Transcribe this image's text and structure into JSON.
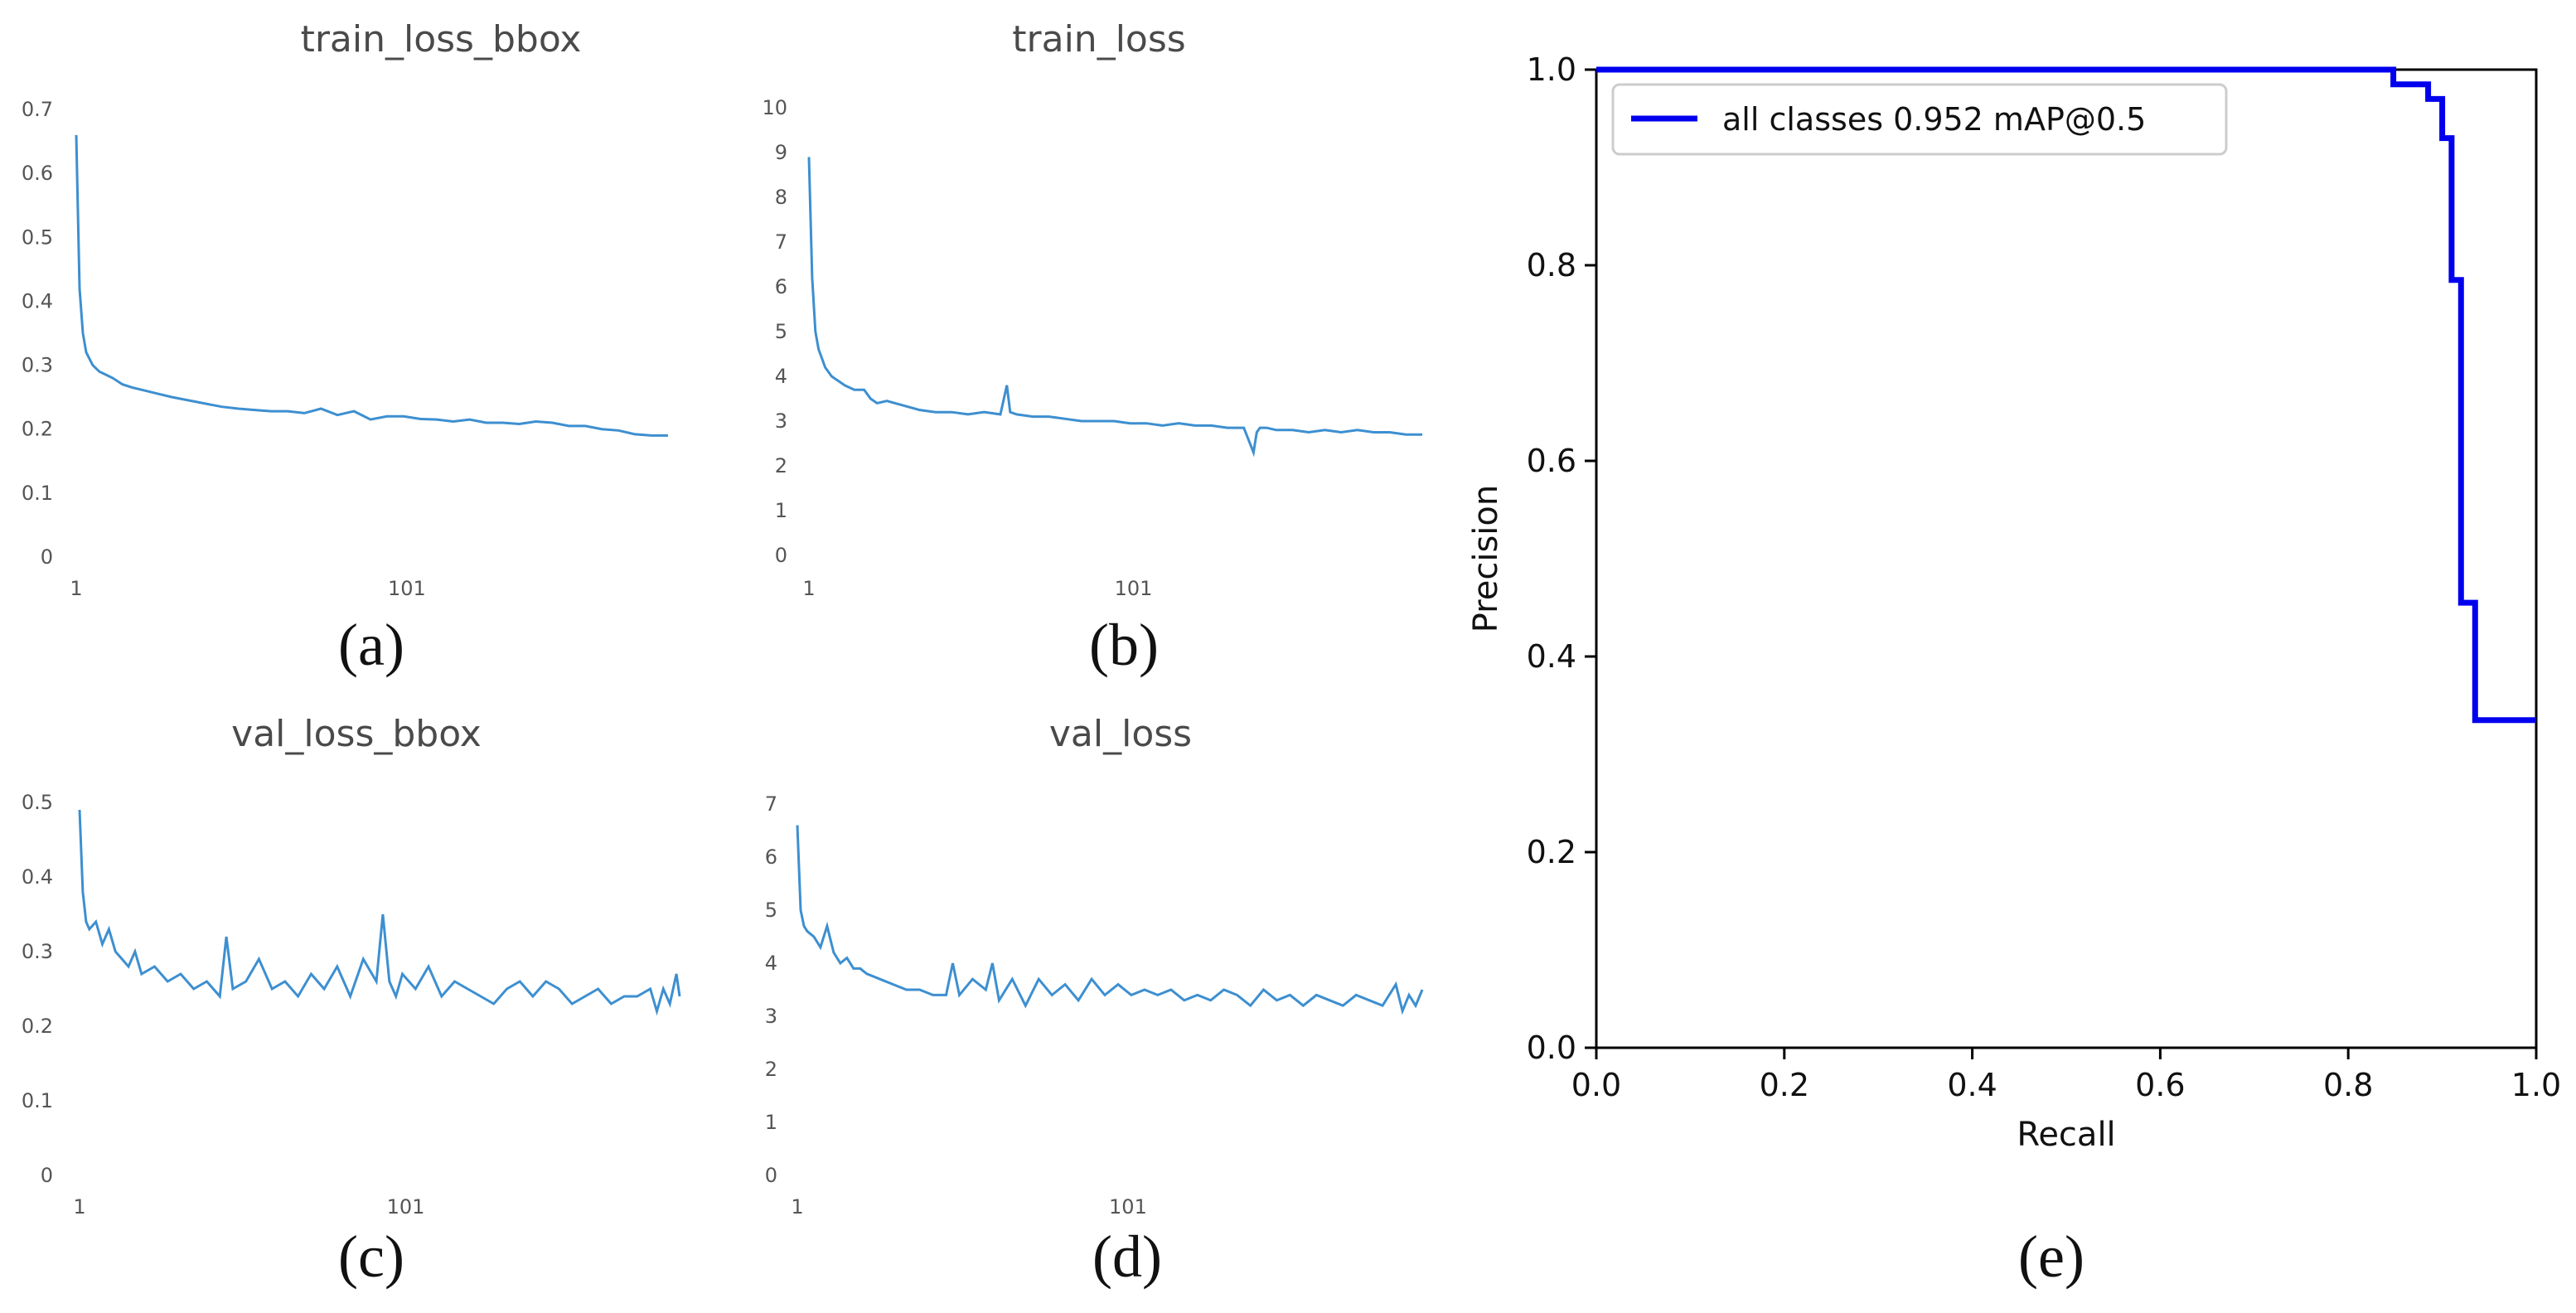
{
  "colors": {
    "loss_line": "#3d8fd0",
    "pr_line": "#0000ee",
    "axis": "#000000"
  },
  "chart_data": [
    {
      "id": "a",
      "type": "line",
      "title": "train_loss_bbox",
      "panel_label": "(a)",
      "xlim": [
        1,
        180
      ],
      "ylim": [
        0,
        0.7
      ],
      "yticks": [
        "0",
        "0.1",
        "0.2",
        "0.3",
        "0.4",
        "0.5",
        "0.6",
        "0.7"
      ],
      "xticks": [
        "1",
        "101"
      ],
      "xtick_values": [
        1,
        101
      ],
      "x": [
        1,
        2,
        3,
        4,
        5,
        6,
        8,
        10,
        12,
        15,
        18,
        22,
        26,
        30,
        35,
        40,
        45,
        50,
        55,
        60,
        65,
        70,
        75,
        80,
        85,
        90,
        95,
        100,
        105,
        110,
        115,
        120,
        125,
        130,
        135,
        140,
        145,
        150,
        155,
        160,
        165,
        170,
        175,
        180
      ],
      "values": [
        0.66,
        0.42,
        0.35,
        0.32,
        0.31,
        0.3,
        0.29,
        0.285,
        0.28,
        0.27,
        0.265,
        0.26,
        0.255,
        0.25,
        0.245,
        0.24,
        0.235,
        0.232,
        0.23,
        0.228,
        0.228,
        0.225,
        0.232,
        0.222,
        0.228,
        0.215,
        0.22,
        0.22,
        0.216,
        0.215,
        0.212,
        0.215,
        0.21,
        0.21,
        0.208,
        0.212,
        0.21,
        0.205,
        0.205,
        0.2,
        0.198,
        0.192,
        0.19,
        0.19
      ]
    },
    {
      "id": "b",
      "type": "line",
      "title": "train_loss",
      "panel_label": "(b)",
      "xlim": [
        1,
        190
      ],
      "ylim": [
        0,
        10
      ],
      "yticks": [
        "0",
        "1",
        "2",
        "3",
        "4",
        "5",
        "6",
        "7",
        "8",
        "9",
        "10"
      ],
      "xticks": [
        "1",
        "101"
      ],
      "xtick_values": [
        1,
        101
      ],
      "x": [
        1,
        2,
        3,
        4,
        5,
        6,
        8,
        10,
        12,
        15,
        18,
        20,
        22,
        25,
        30,
        35,
        40,
        45,
        50,
        55,
        60,
        62,
        63,
        65,
        70,
        75,
        80,
        85,
        90,
        95,
        100,
        105,
        110,
        115,
        120,
        125,
        130,
        135,
        138,
        139,
        140,
        142,
        145,
        150,
        155,
        160,
        165,
        170,
        175,
        180,
        185,
        190
      ],
      "values": [
        8.9,
        6.2,
        5.0,
        4.6,
        4.4,
        4.2,
        4.0,
        3.9,
        3.8,
        3.7,
        3.7,
        3.5,
        3.4,
        3.45,
        3.35,
        3.25,
        3.2,
        3.2,
        3.15,
        3.2,
        3.15,
        3.8,
        3.2,
        3.15,
        3.1,
        3.1,
        3.05,
        3.0,
        3.0,
        3.0,
        2.95,
        2.95,
        2.9,
        2.95,
        2.9,
        2.9,
        2.85,
        2.85,
        2.3,
        2.75,
        2.85,
        2.85,
        2.8,
        2.8,
        2.75,
        2.8,
        2.75,
        2.8,
        2.75,
        2.75,
        2.7,
        2.7
      ]
    },
    {
      "id": "c",
      "type": "line",
      "title": "val_loss_bbox",
      "panel_label": "(c)",
      "xlim": [
        1,
        185
      ],
      "ylim": [
        0,
        0.5
      ],
      "yticks": [
        "0",
        "0.1",
        "0.2",
        "0.3",
        "0.4",
        "0.5"
      ],
      "xticks": [
        "1",
        "101"
      ],
      "xtick_values": [
        1,
        101
      ],
      "x": [
        1,
        2,
        3,
        4,
        6,
        8,
        10,
        12,
        14,
        16,
        18,
        20,
        24,
        28,
        32,
        36,
        40,
        44,
        46,
        48,
        52,
        56,
        60,
        64,
        68,
        72,
        76,
        80,
        84,
        88,
        92,
        94,
        96,
        98,
        100,
        104,
        108,
        112,
        116,
        120,
        124,
        128,
        132,
        136,
        140,
        144,
        148,
        152,
        156,
        160,
        164,
        168,
        172,
        176,
        178,
        180,
        182,
        184,
        185
      ],
      "values": [
        0.49,
        0.38,
        0.34,
        0.33,
        0.34,
        0.31,
        0.33,
        0.3,
        0.29,
        0.28,
        0.3,
        0.27,
        0.28,
        0.26,
        0.27,
        0.25,
        0.26,
        0.24,
        0.32,
        0.25,
        0.26,
        0.29,
        0.25,
        0.26,
        0.24,
        0.27,
        0.25,
        0.28,
        0.24,
        0.29,
        0.26,
        0.35,
        0.26,
        0.24,
        0.27,
        0.25,
        0.28,
        0.24,
        0.26,
        0.25,
        0.24,
        0.23,
        0.25,
        0.26,
        0.24,
        0.26,
        0.25,
        0.23,
        0.24,
        0.25,
        0.23,
        0.24,
        0.24,
        0.25,
        0.22,
        0.25,
        0.23,
        0.27,
        0.24
      ]
    },
    {
      "id": "d",
      "type": "line",
      "title": "val_loss",
      "panel_label": "(d)",
      "xlim": [
        1,
        190
      ],
      "ylim": [
        0,
        7
      ],
      "yticks": [
        "0",
        "1",
        "2",
        "3",
        "4",
        "5",
        "6",
        "7"
      ],
      "xticks": [
        "1",
        "101"
      ],
      "xtick_values": [
        1,
        101
      ],
      "x": [
        1,
        2,
        3,
        4,
        6,
        8,
        10,
        12,
        14,
        16,
        18,
        20,
        22,
        26,
        30,
        34,
        38,
        42,
        46,
        48,
        50,
        54,
        58,
        60,
        62,
        66,
        70,
        74,
        78,
        82,
        86,
        90,
        94,
        98,
        102,
        106,
        110,
        114,
        118,
        122,
        126,
        130,
        134,
        138,
        142,
        146,
        150,
        154,
        158,
        162,
        166,
        170,
        174,
        178,
        182,
        184,
        186,
        188,
        190
      ],
      "values": [
        6.6,
        5.0,
        4.7,
        4.6,
        4.5,
        4.3,
        4.7,
        4.2,
        4.0,
        4.1,
        3.9,
        3.9,
        3.8,
        3.7,
        3.6,
        3.5,
        3.5,
        3.4,
        3.4,
        4.0,
        3.4,
        3.7,
        3.5,
        4.0,
        3.3,
        3.7,
        3.2,
        3.7,
        3.4,
        3.6,
        3.3,
        3.7,
        3.4,
        3.6,
        3.4,
        3.5,
        3.4,
        3.5,
        3.3,
        3.4,
        3.3,
        3.5,
        3.4,
        3.2,
        3.5,
        3.3,
        3.4,
        3.2,
        3.4,
        3.3,
        3.2,
        3.4,
        3.3,
        3.2,
        3.6,
        3.1,
        3.4,
        3.2,
        3.5
      ]
    },
    {
      "id": "e",
      "type": "line",
      "title": "",
      "panel_label": "(e)",
      "xlabel": "Recall",
      "ylabel": "Precision",
      "xlim": [
        0,
        1
      ],
      "ylim": [
        0,
        1
      ],
      "xticks": [
        "0.0",
        "0.2",
        "0.4",
        "0.6",
        "0.8",
        "1.0"
      ],
      "yticks": [
        "0.0",
        "0.2",
        "0.4",
        "0.6",
        "0.8",
        "1.0"
      ],
      "legend": "all classes 0.952 mAP@0.5",
      "legend_position": "top-left",
      "x": [
        0.0,
        0.848,
        0.848,
        0.885,
        0.885,
        0.9,
        0.9,
        0.91,
        0.91,
        0.92,
        0.92,
        0.935,
        0.935,
        0.945,
        0.945,
        1.0
      ],
      "values": [
        1.0,
        1.0,
        0.985,
        0.985,
        0.97,
        0.97,
        0.93,
        0.93,
        0.785,
        0.785,
        0.455,
        0.455,
        0.335,
        0.335,
        0.335,
        0.335
      ]
    }
  ]
}
